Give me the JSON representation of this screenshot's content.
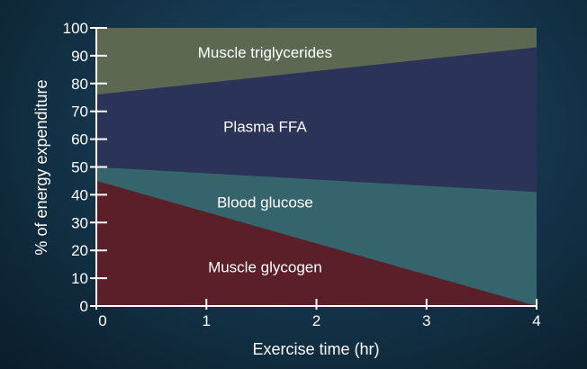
{
  "chart_data": {
    "type": "area",
    "stacked": true,
    "xlabel": "Exercise time (hr)",
    "ylabel": "% of energy expenditure",
    "xlim": [
      0,
      4
    ],
    "ylim": [
      0,
      100
    ],
    "x_ticks": [
      0,
      1,
      2,
      3,
      4
    ],
    "y_ticks": [
      0,
      10,
      20,
      30,
      40,
      50,
      60,
      70,
      80,
      90,
      100
    ],
    "grid": false,
    "legend": "none",
    "x": [
      0,
      4
    ],
    "series": [
      {
        "name": "Muscle glycogen",
        "values": [
          45,
          0
        ],
        "color": "#5a1f28"
      },
      {
        "name": "Blood glucose",
        "values": [
          5,
          41
        ],
        "color": "#35646d"
      },
      {
        "name": "Plasma FFA",
        "values": [
          26,
          52
        ],
        "color": "#2b3358"
      },
      {
        "name": "Muscle triglycerides",
        "values": [
          24,
          7
        ],
        "color": "#5c6851"
      }
    ]
  }
}
